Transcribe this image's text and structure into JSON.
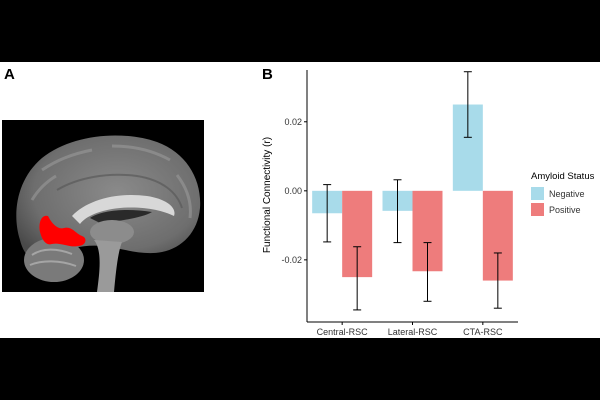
{
  "panel_labels": {
    "a": "A",
    "b": "B"
  },
  "chart_data": {
    "type": "bar",
    "title": "",
    "xlabel": "",
    "ylabel": "Functional Connectivity (r)",
    "ylim": [
      -0.038,
      0.035
    ],
    "yticks": [
      -0.02,
      0.0,
      0.02
    ],
    "ytick_labels": [
      "-0.02",
      "0.00",
      "0.02"
    ],
    "grid": false,
    "categories": [
      "Central-RSC",
      "Lateral-RSC",
      "CTA-RSC"
    ],
    "legend": {
      "title": "Amyloid Status",
      "placement": "right"
    },
    "series": [
      {
        "name": "Negative",
        "color": "#a8dbea",
        "values": [
          -0.0065,
          -0.0058,
          0.025
        ],
        "error_low": [
          -0.0148,
          -0.015,
          0.0155
        ],
        "error_high": [
          0.0018,
          0.0032,
          0.0345
        ]
      },
      {
        "name": "Positive",
        "color": "#ee7c7c",
        "values": [
          -0.025,
          -0.0233,
          -0.026
        ],
        "error_low": [
          -0.0345,
          -0.032,
          -0.034
        ],
        "error_high": [
          -0.0162,
          -0.015,
          -0.018
        ]
      }
    ]
  }
}
